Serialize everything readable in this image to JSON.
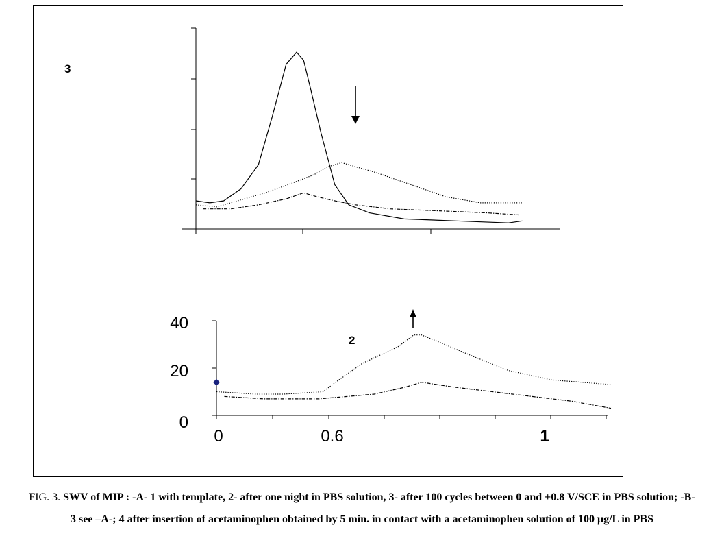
{
  "caption": {
    "prefix": "FIG. 3.",
    "text": "SWV of MIP : -A- 1 with template, 2- after one night in PBS solution, 3- after 100 cycles between 0 and +0.8 V/SCE in PBS solution; -B- 3 see –A-; 4 after insertion of acetaminophen obtained by 5 min. in contact with a acetaminophen solution of 100 μg/L in PBS"
  },
  "chart_data": [
    {
      "type": "line",
      "panel": "A",
      "title": "",
      "xlabel": "",
      "ylabel": "",
      "curve_label": "3",
      "annotations": [
        "down-arrow"
      ],
      "grid": false,
      "series": [
        {
          "style": "solid",
          "x": [
            0.0,
            0.04,
            0.08,
            0.13,
            0.18,
            0.22,
            0.26,
            0.29,
            0.31,
            0.33,
            0.36,
            0.4,
            0.44,
            0.5,
            0.6,
            0.75,
            0.9,
            0.94
          ],
          "y": [
            14,
            13,
            14,
            20,
            32,
            56,
            82,
            88,
            84,
            70,
            48,
            22,
            12,
            8,
            5,
            4,
            3,
            4
          ]
        },
        {
          "style": "dotted",
          "x": [
            0.0,
            0.06,
            0.12,
            0.2,
            0.28,
            0.34,
            0.38,
            0.42,
            0.46,
            0.52,
            0.62,
            0.72,
            0.82,
            0.94
          ],
          "y": [
            12,
            11,
            14,
            18,
            23,
            27,
            31,
            33,
            31,
            28,
            22,
            16,
            13,
            13
          ]
        },
        {
          "style": "dashdot",
          "x": [
            0.02,
            0.1,
            0.18,
            0.26,
            0.31,
            0.35,
            0.4,
            0.46,
            0.56,
            0.7,
            0.84,
            0.93
          ],
          "y": [
            10,
            10,
            12,
            15,
            18,
            16,
            14,
            12,
            10,
            9,
            8,
            7
          ]
        }
      ]
    },
    {
      "type": "line",
      "panel": "B",
      "title": "",
      "xlabel": "",
      "ylabel": "",
      "curve_label": "2",
      "annotations": [
        "up-arrow"
      ],
      "grid": false,
      "ylim": [
        0,
        40
      ],
      "yticks": [
        "40",
        "20",
        "0"
      ],
      "xticks": [
        "0",
        "0.6",
        "1"
      ],
      "marker_y": 14,
      "series": [
        {
          "style": "dotted",
          "x": [
            0.0,
            0.05,
            0.1,
            0.17,
            0.27,
            0.31,
            0.37,
            0.46,
            0.5,
            0.52,
            0.55,
            0.65,
            0.74,
            0.85,
            1.0
          ],
          "y": [
            10,
            9.5,
            9,
            9,
            10,
            15,
            22,
            29,
            34,
            34,
            32,
            25,
            19,
            15,
            13
          ]
        },
        {
          "style": "dashdot",
          "x": [
            0.02,
            0.12,
            0.26,
            0.4,
            0.48,
            0.52,
            0.6,
            0.7,
            0.8,
            0.9,
            1.0
          ],
          "y": [
            8,
            7,
            7,
            9,
            12,
            14,
            12,
            10,
            8,
            6,
            3
          ]
        }
      ]
    }
  ]
}
